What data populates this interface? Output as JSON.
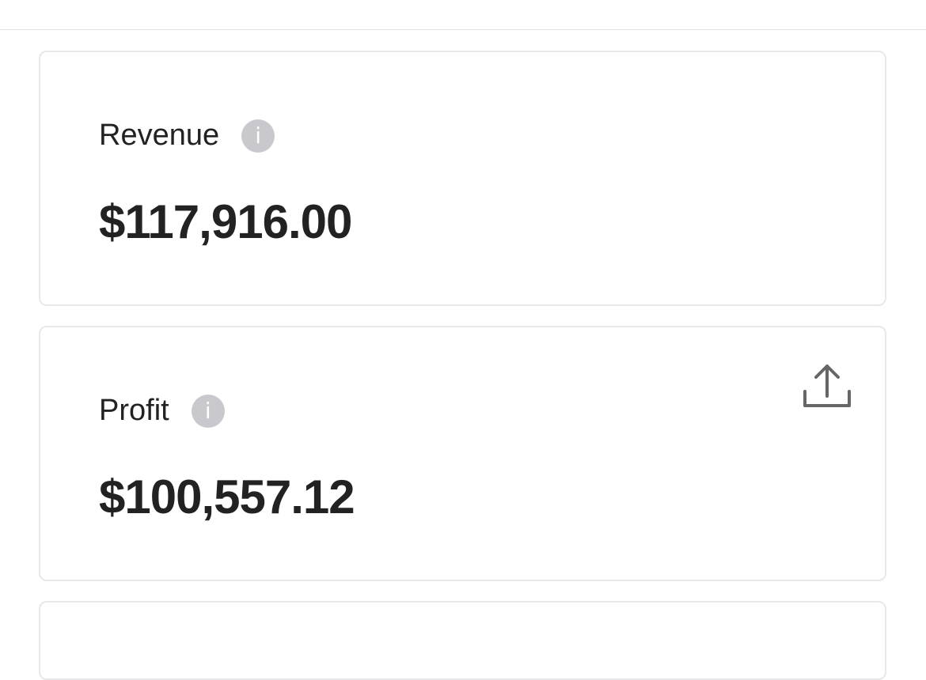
{
  "cards": [
    {
      "label": "Revenue",
      "value": "$117,916.00",
      "info_icon": "info-icon"
    },
    {
      "label": "Profit",
      "value": "$100,557.12",
      "info_icon": "info-icon",
      "action_icon": "share-icon"
    }
  ],
  "info_glyph": "i"
}
